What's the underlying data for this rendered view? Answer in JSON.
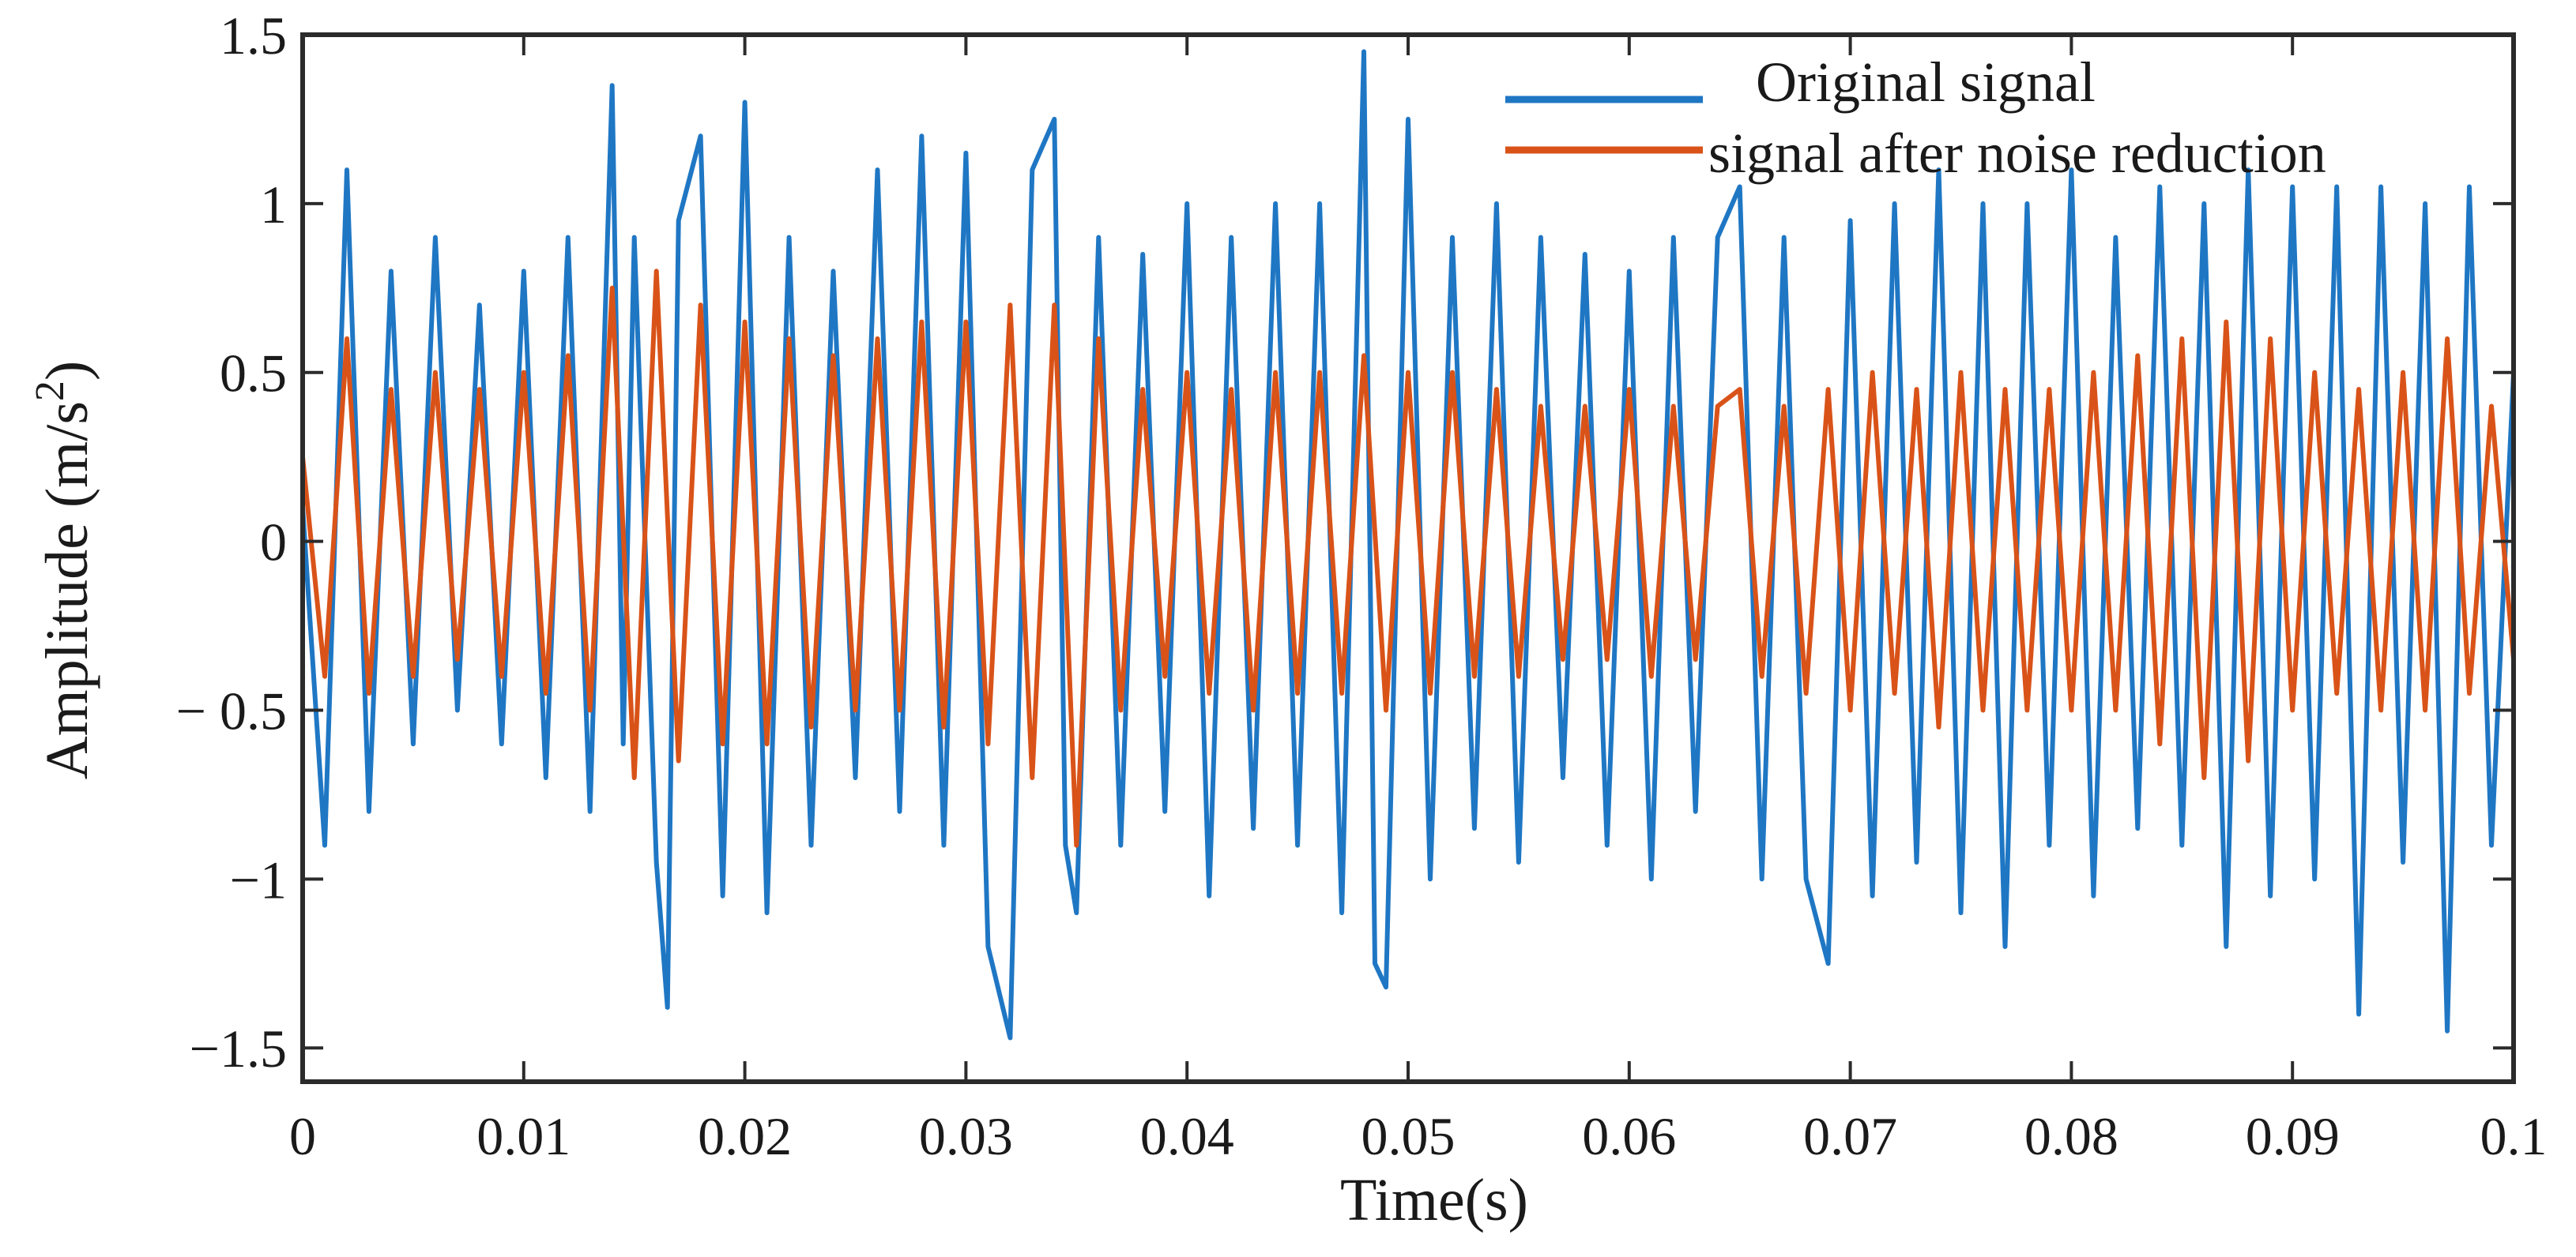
{
  "colors": {
    "original": "#1f77c4",
    "denoised": "#d95319",
    "axis": "#2b2b2b"
  },
  "chart_data": {
    "type": "line",
    "title": "",
    "xlabel": "Time(s)",
    "ylabel": "Amplitude (m/s",
    "ylabel_sup": "2",
    "ylabel_close": ")",
    "xlim": [
      0,
      0.1
    ],
    "ylim": [
      -1.6,
      1.5
    ],
    "xticks": [
      0,
      0.01,
      0.02,
      0.03,
      0.04,
      0.05,
      0.06,
      0.07,
      0.08,
      0.09,
      0.1
    ],
    "xtick_labels": [
      "0",
      "0.01",
      "0.02",
      "0.03",
      "0.04",
      "0.05",
      "0.06",
      "0.07",
      "0.08",
      "0.09",
      "0.1"
    ],
    "yticks": [
      1.5,
      1,
      0.5,
      0,
      -0.5,
      -1,
      -1.5
    ],
    "ytick_labels": [
      "1.5",
      "1",
      "0.5",
      "0",
      "− 0.5",
      "−1",
      "−1.5"
    ],
    "grid": false,
    "legend_position": "top-right",
    "series": [
      {
        "name": "Original signal",
        "color": "#1f77c4",
        "x": [
          0,
          0.001,
          0.002,
          0.003,
          0.004,
          0.005,
          0.006,
          0.007,
          0.008,
          0.009,
          0.01,
          0.011,
          0.012,
          0.013,
          0.014,
          0.0145,
          0.015,
          0.016,
          0.0165,
          0.017,
          0.018,
          0.019,
          0.02,
          0.021,
          0.022,
          0.023,
          0.024,
          0.025,
          0.026,
          0.027,
          0.028,
          0.029,
          0.03,
          0.031,
          0.032,
          0.033,
          0.034,
          0.0345,
          0.035,
          0.036,
          0.037,
          0.038,
          0.039,
          0.04,
          0.041,
          0.042,
          0.043,
          0.044,
          0.045,
          0.046,
          0.047,
          0.048,
          0.0485,
          0.049,
          0.05,
          0.051,
          0.052,
          0.053,
          0.054,
          0.055,
          0.056,
          0.057,
          0.058,
          0.059,
          0.06,
          0.061,
          0.062,
          0.063,
          0.064,
          0.065,
          0.066,
          0.067,
          0.068,
          0.069,
          0.07,
          0.071,
          0.072,
          0.073,
          0.074,
          0.075,
          0.076,
          0.077,
          0.078,
          0.079,
          0.08,
          0.081,
          0.082,
          0.083,
          0.084,
          0.085,
          0.086,
          0.087,
          0.088,
          0.089,
          0.09,
          0.091,
          0.092,
          0.093,
          0.094,
          0.095,
          0.096,
          0.097,
          0.098,
          0.099,
          0.1
        ],
        "y": [
          0.1,
          -0.9,
          1.1,
          -0.8,
          0.8,
          -0.6,
          0.9,
          -0.5,
          0.7,
          -0.6,
          0.8,
          -0.7,
          0.9,
          -0.8,
          1.35,
          -0.6,
          0.9,
          -0.95,
          -1.38,
          0.95,
          1.2,
          -1.05,
          1.3,
          -1.1,
          0.9,
          -0.9,
          0.8,
          -0.7,
          1.1,
          -0.8,
          1.2,
          -0.9,
          1.15,
          -1.2,
          -1.47,
          1.1,
          1.25,
          -0.9,
          -1.1,
          0.9,
          -0.9,
          0.85,
          -0.8,
          1.0,
          -1.05,
          0.9,
          -0.85,
          1.0,
          -0.9,
          1.0,
          -1.1,
          1.45,
          -1.25,
          -1.32,
          1.25,
          -1.0,
          0.9,
          -0.85,
          1.0,
          -0.95,
          0.9,
          -0.7,
          0.85,
          -0.9,
          0.8,
          -1.0,
          0.9,
          -0.8,
          0.9,
          1.05,
          -1.0,
          0.9,
          -1.0,
          -1.25,
          0.95,
          -1.05,
          1.0,
          -0.95,
          1.1,
          -1.1,
          1.0,
          -1.2,
          1.0,
          -0.9,
          1.1,
          -1.05,
          0.9,
          -0.85,
          1.05,
          -0.9,
          1.0,
          -1.2,
          1.1,
          -1.05,
          1.05,
          -1.0,
          1.05,
          -1.4,
          1.05,
          -0.95,
          1.0,
          -1.45,
          1.05,
          -0.9,
          0.5
        ]
      },
      {
        "name": "signal after noise reduction",
        "color": "#d95319",
        "x": [
          0,
          0.001,
          0.002,
          0.003,
          0.004,
          0.005,
          0.006,
          0.007,
          0.008,
          0.009,
          0.01,
          0.011,
          0.012,
          0.013,
          0.014,
          0.015,
          0.016,
          0.017,
          0.018,
          0.019,
          0.02,
          0.021,
          0.022,
          0.023,
          0.024,
          0.025,
          0.026,
          0.027,
          0.028,
          0.029,
          0.03,
          0.031,
          0.032,
          0.033,
          0.034,
          0.035,
          0.036,
          0.037,
          0.038,
          0.039,
          0.04,
          0.041,
          0.042,
          0.043,
          0.044,
          0.045,
          0.046,
          0.047,
          0.048,
          0.049,
          0.05,
          0.051,
          0.052,
          0.053,
          0.054,
          0.055,
          0.056,
          0.057,
          0.058,
          0.059,
          0.06,
          0.061,
          0.062,
          0.063,
          0.064,
          0.065,
          0.066,
          0.067,
          0.068,
          0.069,
          0.07,
          0.071,
          0.072,
          0.073,
          0.074,
          0.075,
          0.076,
          0.077,
          0.078,
          0.079,
          0.08,
          0.081,
          0.082,
          0.083,
          0.084,
          0.085,
          0.086,
          0.087,
          0.088,
          0.089,
          0.09,
          0.091,
          0.092,
          0.093,
          0.094,
          0.095,
          0.096,
          0.097,
          0.098,
          0.099,
          0.1
        ],
        "y": [
          0.25,
          -0.4,
          0.6,
          -0.45,
          0.45,
          -0.4,
          0.5,
          -0.35,
          0.45,
          -0.4,
          0.5,
          -0.45,
          0.55,
          -0.5,
          0.75,
          -0.7,
          0.8,
          -0.65,
          0.7,
          -0.6,
          0.65,
          -0.6,
          0.6,
          -0.55,
          0.55,
          -0.5,
          0.6,
          -0.5,
          0.65,
          -0.55,
          0.65,
          -0.6,
          0.7,
          -0.7,
          0.7,
          -0.9,
          0.6,
          -0.5,
          0.45,
          -0.4,
          0.5,
          -0.45,
          0.45,
          -0.5,
          0.5,
          -0.45,
          0.5,
          -0.45,
          0.55,
          -0.5,
          0.5,
          -0.45,
          0.5,
          -0.4,
          0.45,
          -0.4,
          0.4,
          -0.35,
          0.4,
          -0.35,
          0.45,
          -0.4,
          0.4,
          -0.35,
          0.4,
          0.45,
          -0.4,
          0.4,
          -0.45,
          0.45,
          -0.5,
          0.5,
          -0.45,
          0.45,
          -0.55,
          0.5,
          -0.5,
          0.45,
          -0.5,
          0.45,
          -0.5,
          0.5,
          -0.5,
          0.55,
          -0.6,
          0.6,
          -0.7,
          0.65,
          -0.65,
          0.6,
          -0.5,
          0.5,
          -0.45,
          0.45,
          -0.5,
          0.5,
          -0.5,
          0.6,
          -0.45,
          0.4,
          -0.35
        ]
      }
    ]
  }
}
